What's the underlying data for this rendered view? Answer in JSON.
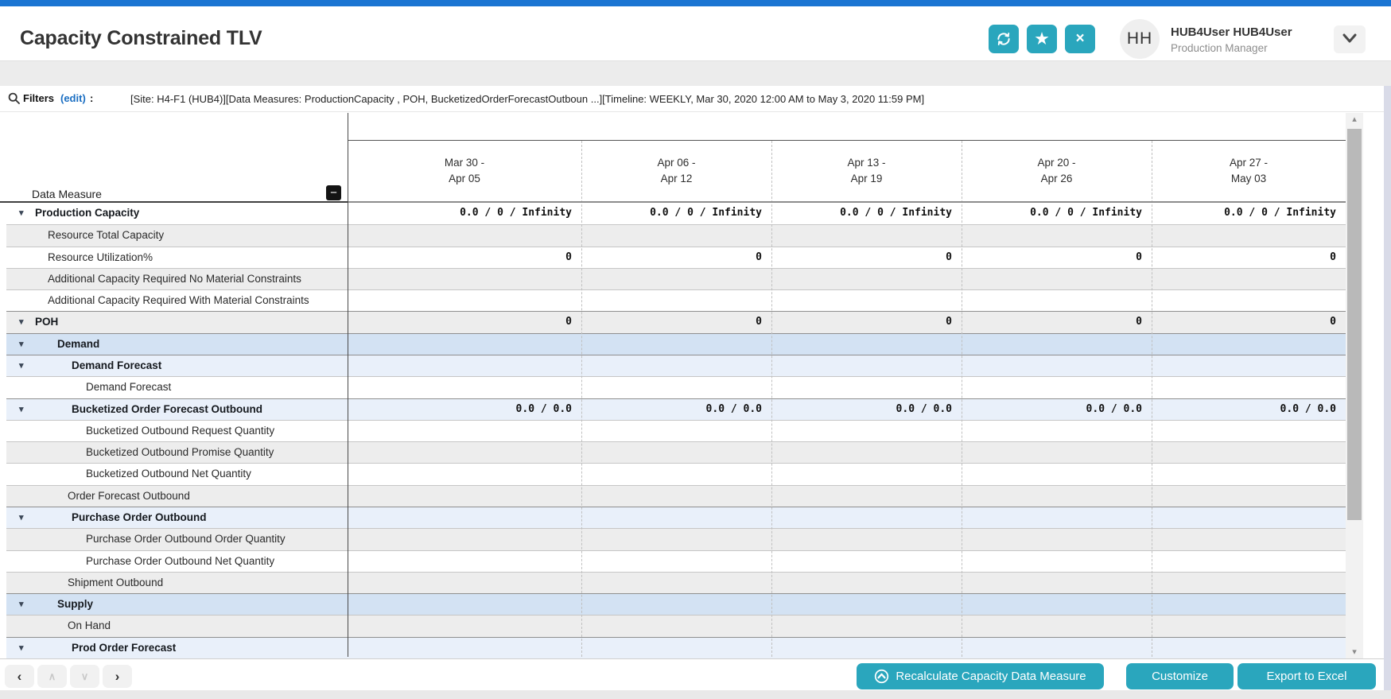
{
  "header": {
    "title": "Capacity Constrained TLV",
    "actions": [
      {
        "name": "refresh"
      },
      {
        "name": "favorite",
        "glyph": "★"
      },
      {
        "name": "close",
        "glyph": "×"
      }
    ],
    "user": {
      "initials": "HH",
      "name": "HUB4User HUB4User",
      "role": "Production Manager"
    }
  },
  "filters": {
    "label": "Filters",
    "edit": "(edit)",
    "colon": ":",
    "summary": "[Site: H4-F1 (HUB4)][Data Measures: ProductionCapacity , POH, BucketizedOrderForecastOutboun ...][Timeline: WEEKLY, Mar 30, 2020 12:00 AM to May 3, 2020 11:59 PM]"
  },
  "icons": {
    "minus": "−",
    "caret": "▾",
    "scroll_up": "▴",
    "scroll_down": "▾"
  },
  "table": {
    "row_header": "Data Measure",
    "columns": [
      {
        "line1": "Mar 30 -",
        "line2": "Apr 05"
      },
      {
        "line1": "Apr 06 -",
        "line2": "Apr 12"
      },
      {
        "line1": "Apr 13 -",
        "line2": "Apr 19"
      },
      {
        "line1": "Apr 20 -",
        "line2": "Apr 26"
      },
      {
        "line1": "Apr 27 -",
        "line2": "May 03"
      }
    ],
    "rows": [
      {
        "label": "Production Capacity",
        "indent": "g0",
        "caret": true,
        "bold": true,
        "bg": "white",
        "sep": true,
        "values": [
          "0.0 / 0 / Infinity",
          "0.0 / 0 / Infinity",
          "0.0 / 0 / Infinity",
          "0.0 / 0 / Infinity",
          "0.0 / 0 / Infinity"
        ]
      },
      {
        "label": "Resource Total Capacity",
        "indent": "c1",
        "bg": "gray"
      },
      {
        "label": "Resource Utilization%",
        "indent": "c1",
        "bg": "white",
        "values": [
          "0",
          "0",
          "0",
          "0",
          "0"
        ]
      },
      {
        "label": "Additional Capacity Required No Material Constraints",
        "indent": "c1",
        "bg": "gray"
      },
      {
        "label": "Additional Capacity Required With Material Constraints",
        "indent": "c1",
        "bg": "white"
      },
      {
        "label": "POH",
        "indent": "g0",
        "caret": true,
        "bold": true,
        "bg": "gray",
        "sep": true,
        "values": [
          "0",
          "0",
          "0",
          "0",
          "0"
        ]
      },
      {
        "label": "Demand",
        "indent": "g2",
        "caret": true,
        "bold": true,
        "bg": "blue",
        "sep": true
      },
      {
        "label": "Demand Forecast",
        "indent": "g3",
        "caret": true,
        "bold": true,
        "bg": "lightblue",
        "sep": true
      },
      {
        "label": "Demand Forecast",
        "indent": "l3",
        "bg": "white"
      },
      {
        "label": "Bucketized Order Forecast Outbound",
        "indent": "g3",
        "caret": true,
        "bold": true,
        "bg": "lightblue",
        "sep": true,
        "values": [
          "0.0 / 0.0",
          "0.0 / 0.0",
          "0.0 / 0.0",
          "0.0 / 0.0",
          "0.0 / 0.0"
        ]
      },
      {
        "label": "Bucketized Outbound Request Quantity",
        "indent": "l3",
        "bg": "white"
      },
      {
        "label": "Bucketized Outbound Promise Quantity",
        "indent": "l3",
        "bg": "gray"
      },
      {
        "label": "Bucketized Outbound Net Quantity",
        "indent": "l3",
        "bg": "white"
      },
      {
        "label": "Order Forecast Outbound",
        "indent": "l2",
        "bg": "gray"
      },
      {
        "label": "Purchase Order Outbound",
        "indent": "g3",
        "caret": true,
        "bold": true,
        "bg": "lightblue",
        "sep": true
      },
      {
        "label": "Purchase Order Outbound Order Quantity",
        "indent": "l3",
        "bg": "gray"
      },
      {
        "label": "Purchase Order Outbound Net Quantity",
        "indent": "l3",
        "bg": "white"
      },
      {
        "label": "Shipment Outbound",
        "indent": "l2",
        "bg": "gray"
      },
      {
        "label": "Supply",
        "indent": "g2",
        "caret": true,
        "bold": true,
        "bg": "blue",
        "sep": true
      },
      {
        "label": "On Hand",
        "indent": "l2",
        "bg": "gray"
      },
      {
        "label": "Prod Order Forecast",
        "indent": "g3",
        "caret": true,
        "bold": true,
        "bg": "lightblue",
        "sep": true
      }
    ]
  },
  "footer": {
    "nav": [
      {
        "name": "prev",
        "glyph": "‹",
        "enabled": true
      },
      {
        "name": "up",
        "glyph": "∧",
        "enabled": false
      },
      {
        "name": "down",
        "glyph": "∨",
        "enabled": false
      },
      {
        "name": "next",
        "glyph": "›",
        "enabled": true
      }
    ],
    "recalculate_label": "Recalculate Capacity Data Measure",
    "customize_label": "Customize",
    "export_label": "Export to Excel"
  },
  "colors": {
    "accent_teal": "#2aa6bd",
    "topbar_blue": "#1b75d2",
    "link_blue": "#1a6ec2",
    "row_white": "#ffffff",
    "row_gray": "#ededed",
    "row_blue": "#d3e2f3",
    "row_lightblue": "#e9f0fa"
  }
}
